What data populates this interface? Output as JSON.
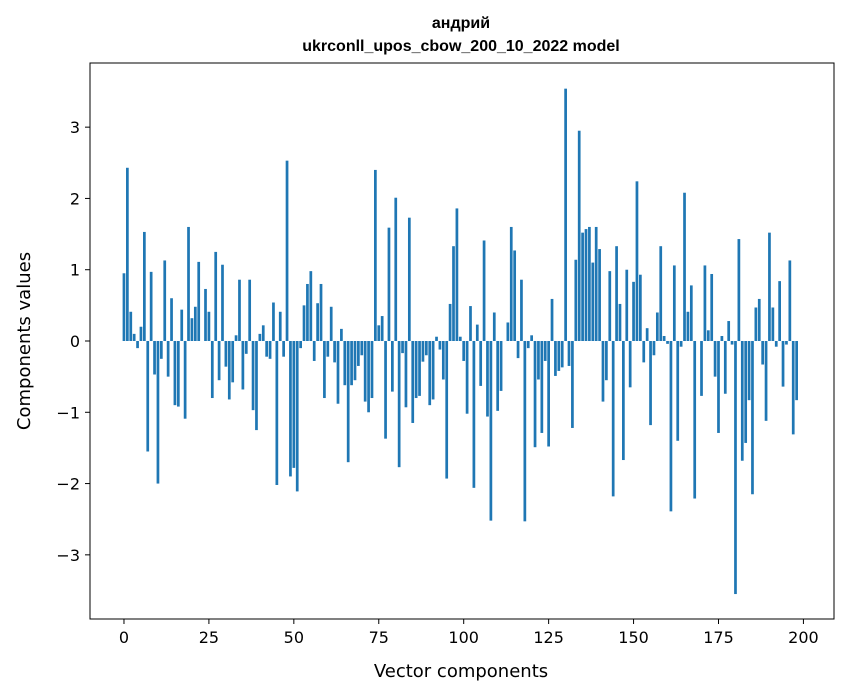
{
  "chart_data": {
    "type": "bar",
    "title": "андрий",
    "subtitle": "ukrconll_upos_cbow_200_10_2022 model",
    "xlabel": "Vector components",
    "ylabel": "Components values",
    "xlim": [
      -10,
      209
    ],
    "ylim": [
      -3.9,
      3.9
    ],
    "xticks": [
      0,
      25,
      50,
      75,
      100,
      125,
      150,
      175,
      200
    ],
    "yticks": [
      -3,
      -2,
      -1,
      0,
      1,
      2,
      3
    ],
    "bar_color": "#1f77b4",
    "values": [
      0.95,
      2.43,
      0.41,
      0.1,
      -0.1,
      0.2,
      1.53,
      -1.55,
      0.97,
      -0.47,
      -2.0,
      -0.25,
      1.13,
      -0.5,
      0.6,
      -0.9,
      -0.92,
      0.44,
      -1.09,
      1.6,
      0.32,
      0.48,
      1.11,
      0.0,
      0.73,
      0.41,
      -0.8,
      1.25,
      -0.55,
      1.07,
      -0.36,
      -0.82,
      -0.58,
      0.08,
      0.86,
      -0.68,
      -0.18,
      0.86,
      -0.97,
      -1.25,
      0.1,
      0.22,
      -0.22,
      -0.25,
      0.54,
      -2.02,
      0.41,
      -0.22,
      2.53,
      -1.9,
      -1.78,
      -2.11,
      -0.1,
      0.5,
      0.8,
      0.98,
      -0.28,
      0.53,
      0.8,
      -0.8,
      -0.22,
      0.48,
      -0.3,
      -0.88,
      0.17,
      -0.62,
      -1.7,
      -0.62,
      -0.55,
      -0.35,
      -0.2,
      -0.85,
      -1.0,
      -0.8,
      2.4,
      0.22,
      0.35,
      -1.37,
      1.59,
      -0.71,
      2.01,
      -1.77,
      -0.17,
      -0.93,
      1.73,
      -1.15,
      -0.8,
      -0.77,
      -0.29,
      -0.2,
      -0.9,
      -0.82,
      0.06,
      -0.12,
      -0.54,
      -1.93,
      0.52,
      1.33,
      1.86,
      0.06,
      -0.28,
      -1.02,
      0.49,
      -2.06,
      0.23,
      -0.63,
      1.41,
      -1.06,
      -2.52,
      0.4,
      -0.98,
      -0.7,
      0.0,
      0.26,
      1.6,
      1.27,
      -0.24,
      0.86,
      -2.53,
      -0.1,
      0.08,
      -1.49,
      -0.54,
      -1.29,
      -0.28,
      -1.48,
      0.59,
      -0.49,
      -0.42,
      -0.37,
      3.54,
      -0.35,
      -1.22,
      1.14,
      2.95,
      1.52,
      1.57,
      1.6,
      1.1,
      1.6,
      1.29,
      -0.85,
      -0.55,
      0.98,
      -2.18,
      1.33,
      0.52,
      -1.67,
      1.0,
      -0.65,
      0.83,
      2.24,
      0.93,
      -0.3,
      0.18,
      -1.18,
      -0.2,
      0.4,
      1.33,
      0.07,
      -0.04,
      -2.39,
      1.06,
      -1.4,
      -0.08,
      2.08,
      0.41,
      0.78,
      -2.21,
      0.0,
      -0.77,
      1.06,
      0.15,
      0.94,
      -0.5,
      -1.29,
      0.07,
      -0.74,
      0.28,
      -0.05,
      -3.55,
      1.43,
      -1.68,
      -1.43,
      -0.83,
      -2.15,
      0.47,
      0.59,
      -0.33,
      -1.12,
      1.52,
      0.47,
      -0.08,
      0.84,
      -0.64,
      -0.05,
      1.13,
      -1.31,
      -0.83
    ]
  }
}
